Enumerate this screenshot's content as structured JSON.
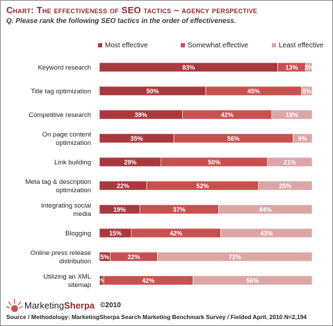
{
  "header": {
    "title": "Chart: The effectiveness of SEO tactics – agency perspective",
    "question": "Q. Please rank the following SEO tactics in the order of effectiveness."
  },
  "colors": {
    "most": "#a8393d",
    "somewhat": "#c7514f",
    "least": "#dca6a6",
    "title": "#8b2a2a"
  },
  "chart_data": {
    "type": "bar",
    "orientation": "horizontal",
    "stacked": true,
    "percent_stacked": true,
    "categories": [
      "Keyword research",
      "Title tag optimization",
      "Competitive research",
      "On page content optimization",
      "Link building",
      "Meta tag & description optimization",
      "Integrating social media",
      "Blogging",
      "Online press release distribution",
      "Utilizing an XML sitemap"
    ],
    "category_lines": [
      [
        "Keyword research"
      ],
      [
        "Title tag optimization"
      ],
      [
        "Competitive research"
      ],
      [
        "On page content",
        "optimization"
      ],
      [
        "Link building"
      ],
      [
        "Meta tag & description",
        "optimization"
      ],
      [
        "Integrating social",
        "media"
      ],
      [
        "Blogging"
      ],
      [
        "Online press release",
        "distribution"
      ],
      [
        "Utilizing an XML",
        "sitemap"
      ]
    ],
    "series": [
      {
        "name": "Most effective",
        "color": "#a8393d",
        "values": [
          83,
          50,
          39,
          35,
          29,
          22,
          19,
          15,
          5,
          2
        ]
      },
      {
        "name": "Somewhat effective",
        "color": "#c7514f",
        "values": [
          13,
          45,
          42,
          56,
          50,
          52,
          37,
          42,
          22,
          42
        ]
      },
      {
        "name": "Least effective",
        "color": "#dca6a6",
        "values": [
          3,
          5,
          19,
          9,
          21,
          25,
          44,
          43,
          72,
          56
        ]
      }
    ],
    "value_suffix": "%",
    "legend_position": "top",
    "grid": false
  },
  "footer": {
    "logo_prefix": "Marketing",
    "logo_suffix": "Sherpa",
    "copyright": "©2010",
    "source": "Source / Methodology: MarketingSherpa Search Marketing Benchmark Survey / Fielded April, 2010 N=2,194"
  }
}
